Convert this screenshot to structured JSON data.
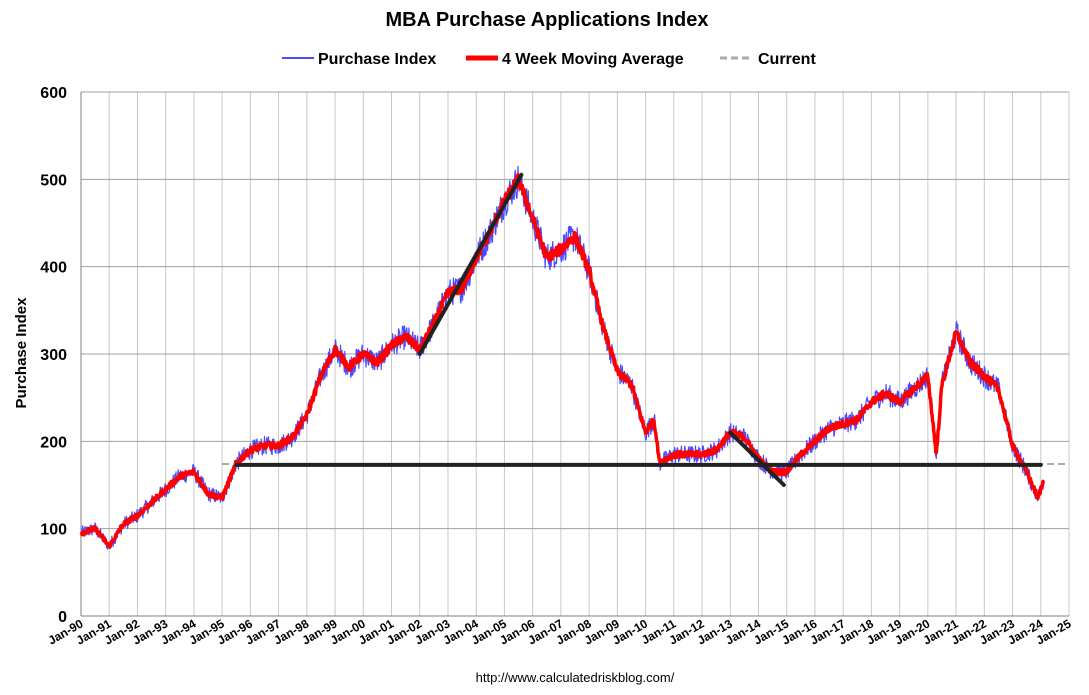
{
  "chart_data": {
    "type": "line",
    "title": "MBA Purchase Applications Index",
    "ylabel": "Purchase Index",
    "xlabel": "",
    "source": "http://www.calculatedriskblog.com/",
    "ylim": [
      0,
      600
    ],
    "yticks": [
      0,
      100,
      200,
      300,
      400,
      500,
      600
    ],
    "xlim": [
      1990,
      2025
    ],
    "grid": true,
    "legend_position": "top",
    "xtick_labels": [
      "Jan-90",
      "Jan-91",
      "Jan-92",
      "Jan-93",
      "Jan-94",
      "Jan-95",
      "Jan-96",
      "Jan-97",
      "Jan-98",
      "Jan-99",
      "Jan-00",
      "Jan-01",
      "Jan-02",
      "Jan-03",
      "Jan-04",
      "Jan-05",
      "Jan-06",
      "Jan-07",
      "Jan-08",
      "Jan-09",
      "Jan-10",
      "Jan-11",
      "Jan-12",
      "Jan-13",
      "Jan-14",
      "Jan-15",
      "Jan-16",
      "Jan-17",
      "Jan-18",
      "Jan-19",
      "Jan-20",
      "Jan-21",
      "Jan-22",
      "Jan-23",
      "Jan-24",
      "Jan-25"
    ],
    "series": [
      {
        "name": "Purchase Index",
        "color": "#4a4aff",
        "noise": 12,
        "x": [
          1990.0,
          1990.5,
          1991.0,
          1991.5,
          1992.0,
          1992.5,
          1993.0,
          1993.5,
          1994.0,
          1994.5,
          1995.0,
          1995.5,
          1996.0,
          1996.5,
          1997.0,
          1997.5,
          1998.0,
          1998.5,
          1999.0,
          1999.5,
          2000.0,
          2000.5,
          2001.0,
          2001.5,
          2002.0,
          2002.5,
          2003.0,
          2003.5,
          2004.0,
          2004.5,
          2005.0,
          2005.5,
          2006.0,
          2006.5,
          2007.0,
          2007.5,
          2008.0,
          2008.5,
          2009.0,
          2009.5,
          2010.0,
          2010.3,
          2010.5,
          2011.0,
          2011.5,
          2012.0,
          2012.5,
          2013.0,
          2013.5,
          2014.0,
          2014.5,
          2015.0,
          2015.5,
          2016.0,
          2016.5,
          2017.0,
          2017.5,
          2018.0,
          2018.5,
          2019.0,
          2019.5,
          2020.0,
          2020.3,
          2020.5,
          2021.0,
          2021.5,
          2022.0,
          2022.5,
          2023.0,
          2023.5,
          2023.9,
          2024.1
        ],
        "y": [
          95,
          100,
          80,
          105,
          115,
          130,
          145,
          160,
          165,
          140,
          135,
          175,
          190,
          195,
          195,
          205,
          230,
          275,
          305,
          285,
          300,
          290,
          310,
          320,
          305,
          335,
          370,
          375,
          410,
          440,
          475,
          500,
          455,
          410,
          420,
          435,
          395,
          330,
          280,
          265,
          210,
          225,
          175,
          185,
          185,
          185,
          190,
          210,
          205,
          180,
          165,
          165,
          185,
          200,
          215,
          220,
          225,
          245,
          255,
          245,
          260,
          275,
          185,
          265,
          325,
          290,
          275,
          260,
          195,
          165,
          135,
          155
        ]
      },
      {
        "name": "4 Week Moving Average",
        "color": "#ff0000",
        "noise": 4,
        "x": [
          1990.0,
          1990.5,
          1991.0,
          1991.5,
          1992.0,
          1992.5,
          1993.0,
          1993.5,
          1994.0,
          1994.5,
          1995.0,
          1995.5,
          1996.0,
          1996.5,
          1997.0,
          1997.5,
          1998.0,
          1998.5,
          1999.0,
          1999.5,
          2000.0,
          2000.5,
          2001.0,
          2001.5,
          2002.0,
          2002.5,
          2003.0,
          2003.5,
          2004.0,
          2004.5,
          2005.0,
          2005.5,
          2006.0,
          2006.5,
          2007.0,
          2007.5,
          2008.0,
          2008.5,
          2009.0,
          2009.5,
          2010.0,
          2010.3,
          2010.5,
          2011.0,
          2011.5,
          2012.0,
          2012.5,
          2013.0,
          2013.5,
          2014.0,
          2014.5,
          2015.0,
          2015.5,
          2016.0,
          2016.5,
          2017.0,
          2017.5,
          2018.0,
          2018.5,
          2019.0,
          2019.5,
          2020.0,
          2020.3,
          2020.5,
          2021.0,
          2021.5,
          2022.0,
          2022.5,
          2023.0,
          2023.5,
          2023.9,
          2024.1
        ],
        "y": [
          95,
          100,
          80,
          105,
          115,
          130,
          145,
          160,
          165,
          140,
          135,
          175,
          190,
          195,
          195,
          205,
          230,
          275,
          305,
          285,
          300,
          290,
          310,
          320,
          305,
          335,
          370,
          375,
          410,
          440,
          475,
          500,
          455,
          410,
          420,
          435,
          395,
          330,
          280,
          265,
          210,
          225,
          175,
          185,
          185,
          185,
          190,
          210,
          205,
          180,
          165,
          165,
          185,
          200,
          215,
          220,
          225,
          245,
          255,
          245,
          260,
          275,
          185,
          265,
          325,
          290,
          275,
          260,
          195,
          165,
          135,
          155
        ]
      },
      {
        "name": "Current",
        "color": "#aaaaaa",
        "dashed": true,
        "x": [
          1995.0,
          2025.0
        ],
        "y": [
          174,
          174
        ]
      }
    ],
    "trend_lines": [
      {
        "x": [
          1995.5,
          2024.0
        ],
        "y": [
          173,
          173
        ]
      },
      {
        "x": [
          2002.0,
          2005.6
        ],
        "y": [
          300,
          505
        ]
      },
      {
        "x": [
          2013.0,
          2014.9
        ],
        "y": [
          210,
          150
        ]
      }
    ]
  }
}
